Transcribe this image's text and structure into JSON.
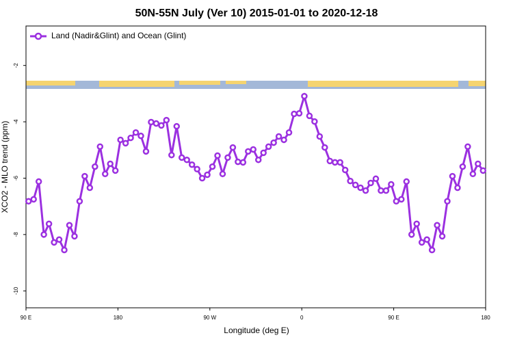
{
  "chart_data": {
    "type": "line",
    "title": "50N-55N July (Ver 10)   2015-01-01 to 2020-12-18",
    "xlabel": "Longitude (deg E)",
    "ylabel": "XCO2 - MLO trend (ppm)",
    "legend": "top-left",
    "xlim": [
      90,
      540
    ],
    "xticks": [
      {
        "value": 90,
        "label": "90 E"
      },
      {
        "value": 180,
        "label": "180"
      },
      {
        "value": 270,
        "label": "90 W"
      },
      {
        "value": 360,
        "label": "0"
      },
      {
        "value": 450,
        "label": "90 E"
      },
      {
        "value": 540,
        "label": "180"
      }
    ],
    "ylim": [
      -10.6,
      -0.6
    ],
    "yticks": [
      -2,
      -4,
      -6,
      -8,
      -10
    ],
    "x": [
      92.5,
      97.5,
      102.5,
      107.5,
      112.5,
      117.5,
      122.5,
      127.5,
      132.5,
      137.5,
      142.5,
      147.5,
      152.5,
      157.5,
      162.5,
      167.5,
      172.5,
      177.5,
      182.5,
      187.5,
      192.5,
      197.5,
      202.5,
      207.5,
      212.5,
      217.5,
      222.5,
      227.5,
      232.5,
      237.5,
      242.5,
      247.5,
      252.5,
      257.5,
      262.5,
      267.5,
      272.5,
      277.5,
      282.5,
      287.5,
      292.5,
      297.5,
      302.5,
      307.5,
      312.5,
      317.5,
      322.5,
      327.5,
      332.5,
      337.5,
      342.5,
      347.5,
      352.5,
      357.5,
      362.5,
      367.5,
      372.5,
      377.5,
      382.5,
      387.5,
      392.5,
      397.5,
      402.5,
      407.5,
      412.5,
      417.5,
      422.5,
      427.5,
      432.5,
      437.5,
      442.5,
      447.5,
      452.5,
      457.5,
      462.5,
      467.5,
      472.5,
      477.5,
      482.5,
      487.5,
      492.5,
      497.5,
      502.5,
      507.5,
      512.5,
      517.5,
      522.5,
      527.5,
      532.5,
      537.5
    ],
    "series": [
      {
        "name": "Land (Nadir&Glint) and Ocean (Glint)",
        "color": "#9b30e0",
        "values": [
          -6.82,
          -6.75,
          -6.12,
          -8.0,
          -7.62,
          -8.28,
          -8.18,
          -8.55,
          -7.67,
          -8.06,
          -6.82,
          -5.93,
          -6.34,
          -5.59,
          -4.88,
          -5.85,
          -5.49,
          -5.73,
          -4.64,
          -4.76,
          -4.57,
          -4.38,
          -4.5,
          -5.05,
          -4.01,
          -4.06,
          -4.13,
          -3.94,
          -5.18,
          -4.16,
          -5.27,
          -5.35,
          -5.52,
          -5.68,
          -6.0,
          -5.88,
          -5.59,
          -5.2,
          -5.85,
          -5.27,
          -4.91,
          -5.42,
          -5.44,
          -5.05,
          -4.98,
          -5.35,
          -5.1,
          -4.88,
          -4.74,
          -4.52,
          -4.64,
          -4.38,
          -3.72,
          -3.7,
          -3.09,
          -3.79,
          -3.99,
          -4.52,
          -4.91,
          -5.39,
          -5.44,
          -5.44,
          -5.71,
          -6.1,
          -6.24,
          -6.34,
          -6.44,
          -6.17,
          -6.02,
          -6.44,
          -6.44,
          -6.22,
          -6.82,
          -6.75,
          -6.12,
          -8.0,
          -7.62,
          -8.28,
          -8.18,
          -8.55,
          -7.67,
          -8.06,
          -6.82,
          -5.93,
          -6.34,
          -5.59,
          -4.88,
          -5.85,
          -5.49,
          -5.73
        ]
      }
    ]
  }
}
